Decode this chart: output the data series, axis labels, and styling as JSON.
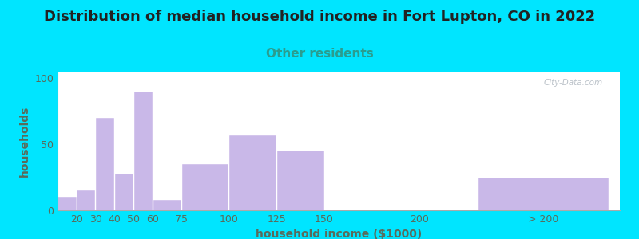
{
  "title": "Distribution of median household income in Fort Lupton, CO in 2022",
  "subtitle": "Other residents",
  "xlabel": "household income ($1000)",
  "ylabel": "households",
  "bar_labels": [
    "20",
    "30",
    "40",
    "50",
    "60",
    "75",
    "100",
    "125",
    "150",
    "200",
    "> 200"
  ],
  "bar_values": [
    10,
    15,
    70,
    28,
    90,
    8,
    35,
    57,
    45,
    0,
    25
  ],
  "bar_color": "#c9b8e8",
  "bar_edgecolor": "#c9b8e8",
  "bg_color": "#00e5ff",
  "title_color": "#222222",
  "subtitle_color": "#2a9d8f",
  "axis_label_color": "#5a6a5a",
  "tick_color": "#5a6a5a",
  "yticks": [
    0,
    50,
    100
  ],
  "ylim": [
    0,
    105
  ],
  "watermark": "City-Data.com",
  "title_fontsize": 13,
  "subtitle_fontsize": 11,
  "label_fontsize": 9,
  "tick_fontsize": 9,
  "grad_left": "#c8e6c0",
  "grad_right": "#f0ede0"
}
